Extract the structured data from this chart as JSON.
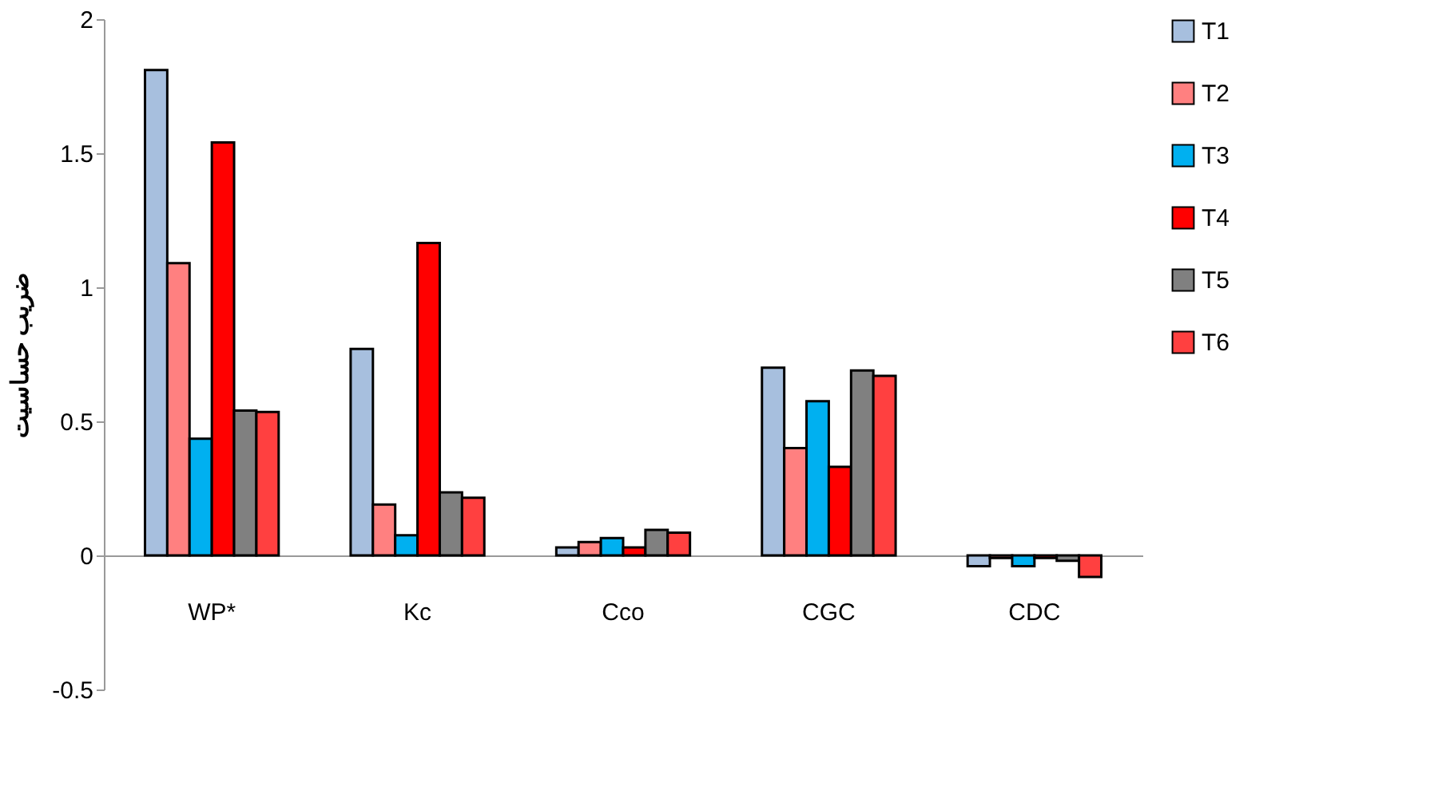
{
  "chart_data": {
    "type": "bar",
    "ylabel": "ضریب حساسیت",
    "categories": [
      "WP*",
      "Kc",
      "Cco",
      "CGC",
      "CDC"
    ],
    "series": [
      {
        "name": "T1",
        "color": "#a7bfde",
        "values": [
          1.81,
          0.77,
          0.03,
          0.7,
          -0.04
        ]
      },
      {
        "name": "T2",
        "color": "#ff8080",
        "values": [
          1.09,
          0.19,
          0.05,
          0.4,
          -0.01
        ]
      },
      {
        "name": "T3",
        "color": "#00b0f0",
        "values": [
          0.435,
          0.075,
          0.065,
          0.575,
          -0.04
        ]
      },
      {
        "name": "T4",
        "color": "#ff0000",
        "values": [
          1.54,
          1.165,
          0.03,
          0.33,
          -0.01
        ]
      },
      {
        "name": "T5",
        "color": "#808080",
        "values": [
          0.54,
          0.235,
          0.095,
          0.69,
          -0.02
        ]
      },
      {
        "name": "T6",
        "color": "#ff4040",
        "values": [
          0.535,
          0.215,
          0.085,
          0.67,
          -0.08
        ]
      }
    ],
    "ylim": [
      -0.5,
      2
    ],
    "yticks": [
      -0.5,
      0,
      0.5,
      1,
      1.5,
      2
    ],
    "grid": false,
    "legend": "right"
  }
}
